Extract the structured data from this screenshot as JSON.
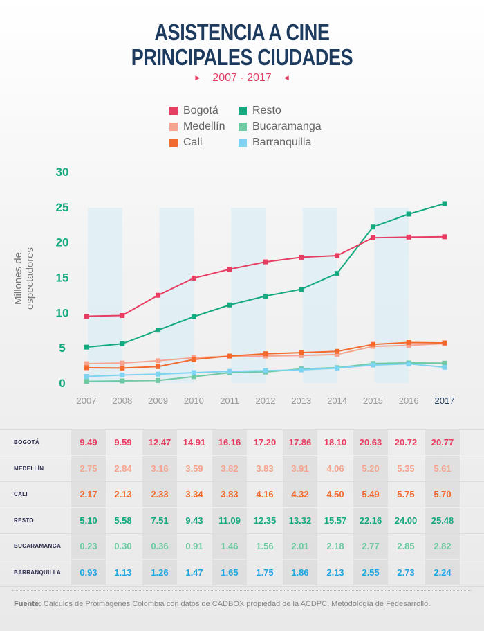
{
  "title_line1": "ASISTENCIA A CINE",
  "title_line2": "PRINCIPALES CIUDADES",
  "subtitle": "2007 - 2017",
  "footer": {
    "label": "Fuente:",
    "text": "Cálculos de Proimágenes Colombia con datos de CADBOX propiedad de la ACDPC. Metodología de Fedesarrollo."
  },
  "chart_data": {
    "type": "line",
    "title": "ASISTENCIA A CINE PRINCIPALES CIUDADES",
    "subtitle": "2007 - 2017",
    "xlabel": "",
    "ylabel": "Millones de espectadores",
    "ylim": [
      0,
      30
    ],
    "yticks": [
      "0",
      "5",
      "10",
      "15",
      "20",
      "25",
      "30"
    ],
    "x": [
      "2007",
      "2008",
      "2009",
      "2010",
      "2011",
      "2012",
      "2013",
      "2014",
      "2015",
      "2016",
      "2017"
    ],
    "legend_position": "top",
    "series": [
      {
        "name": "Bogotá",
        "label": "BOGOTÁ",
        "color": "#e63d62",
        "values": [
          9.49,
          9.59,
          12.47,
          14.91,
          16.16,
          17.2,
          17.86,
          18.1,
          20.63,
          20.72,
          20.77
        ],
        "display": [
          "9.49",
          "9.59",
          "12.47",
          "14.91",
          "16.16",
          "17.20",
          "17.86",
          "18.10",
          "20.63",
          "20.72",
          "20.77"
        ]
      },
      {
        "name": "Medellín",
        "label": "MEDELLÍN",
        "color": "#f5a58f",
        "values": [
          2.75,
          2.84,
          3.16,
          3.59,
          3.82,
          3.83,
          3.91,
          4.06,
          5.2,
          5.35,
          5.61
        ],
        "display": [
          "2.75",
          "2.84",
          "3.16",
          "3.59",
          "3.82",
          "3.83",
          "3.91",
          "4.06",
          "5.20",
          "5.35",
          "5.61"
        ]
      },
      {
        "name": "Cali",
        "label": "CALI",
        "color": "#f26a2e",
        "values": [
          2.17,
          2.13,
          2.33,
          3.34,
          3.83,
          4.16,
          4.32,
          4.5,
          5.49,
          5.75,
          5.7
        ],
        "display": [
          "2.17",
          "2.13",
          "2.33",
          "3.34",
          "3.83",
          "4.16",
          "4.32",
          "4.50",
          "5.49",
          "5.75",
          "5.70"
        ]
      },
      {
        "name": "Resto",
        "label": "RESTO",
        "color": "#14a97e",
        "values": [
          5.1,
          5.58,
          7.51,
          9.43,
          11.09,
          12.35,
          13.32,
          15.57,
          22.16,
          24.0,
          25.48
        ],
        "display": [
          "5.10",
          "5.58",
          "7.51",
          "9.43",
          "11.09",
          "12.35",
          "13.32",
          "15.57",
          "22.16",
          "24.00",
          "25.48"
        ]
      },
      {
        "name": "Bucaramanga",
        "label": "BUCARAMANGA",
        "color": "#6fc9a3",
        "values": [
          0.23,
          0.3,
          0.36,
          0.91,
          1.46,
          1.56,
          2.01,
          2.18,
          2.77,
          2.85,
          2.82
        ],
        "display": [
          "0.23",
          "0.30",
          "0.36",
          "0.91",
          "1.46",
          "1.56",
          "2.01",
          "2.18",
          "2.77",
          "2.85",
          "2.82"
        ]
      },
      {
        "name": "Barranquilla",
        "label": "BARRANQUILLA",
        "color": "#7dd3f0",
        "table_color": "#1fa6e0",
        "values": [
          0.93,
          1.13,
          1.26,
          1.47,
          1.65,
          1.75,
          1.86,
          2.13,
          2.55,
          2.73,
          2.24
        ],
        "display": [
          "0.93",
          "1.13",
          "1.26",
          "1.47",
          "1.65",
          "1.75",
          "1.86",
          "2.13",
          "2.55",
          "2.73",
          "2.24"
        ]
      }
    ]
  }
}
